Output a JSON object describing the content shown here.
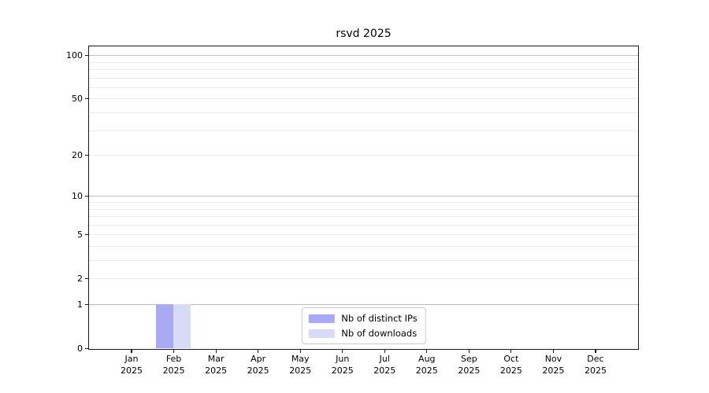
{
  "chart_data": {
    "type": "bar",
    "title": "rsvd 2025",
    "categories": [
      "Jan 2025",
      "Feb 2025",
      "Mar 2025",
      "Apr 2025",
      "May 2025",
      "Jun 2025",
      "Jul 2025",
      "Aug 2025",
      "Sep 2025",
      "Oct 2025",
      "Nov 2025",
      "Dec 2025"
    ],
    "series": [
      {
        "name": "Nb of distinct IPs",
        "color": "#a9a9f4",
        "values": [
          0,
          1,
          0,
          0,
          0,
          0,
          0,
          0,
          0,
          0,
          0,
          0
        ]
      },
      {
        "name": "Nb of downloads",
        "color": "#d9d9f8",
        "values": [
          0,
          1,
          0,
          0,
          0,
          0,
          0,
          0,
          0,
          0,
          0,
          0
        ]
      }
    ],
    "xlabel": "",
    "ylabel": "",
    "yscale": "log1p",
    "ylim": [
      0,
      115
    ],
    "y_ticks": [
      100,
      50,
      20,
      10,
      5,
      2,
      1,
      0
    ],
    "y_major_gridlines": [
      1,
      10,
      100
    ],
    "y_minor_gridlines": [
      2,
      3,
      4,
      5,
      6,
      7,
      8,
      9,
      20,
      30,
      40,
      50,
      60,
      70,
      80,
      90
    ],
    "grid": "horizontal",
    "legend_position": "lower center"
  },
  "colors": {
    "axis": "#1a1a1a",
    "grid_major": "#bdbdbd",
    "grid_minor": "#ececec",
    "text": "#000000",
    "legend_border": "#cccccc",
    "legend_bg": "#ffffff",
    "bar_distinct_ips": "#a9a9f4",
    "bar_downloads": "#d9d9f8"
  }
}
